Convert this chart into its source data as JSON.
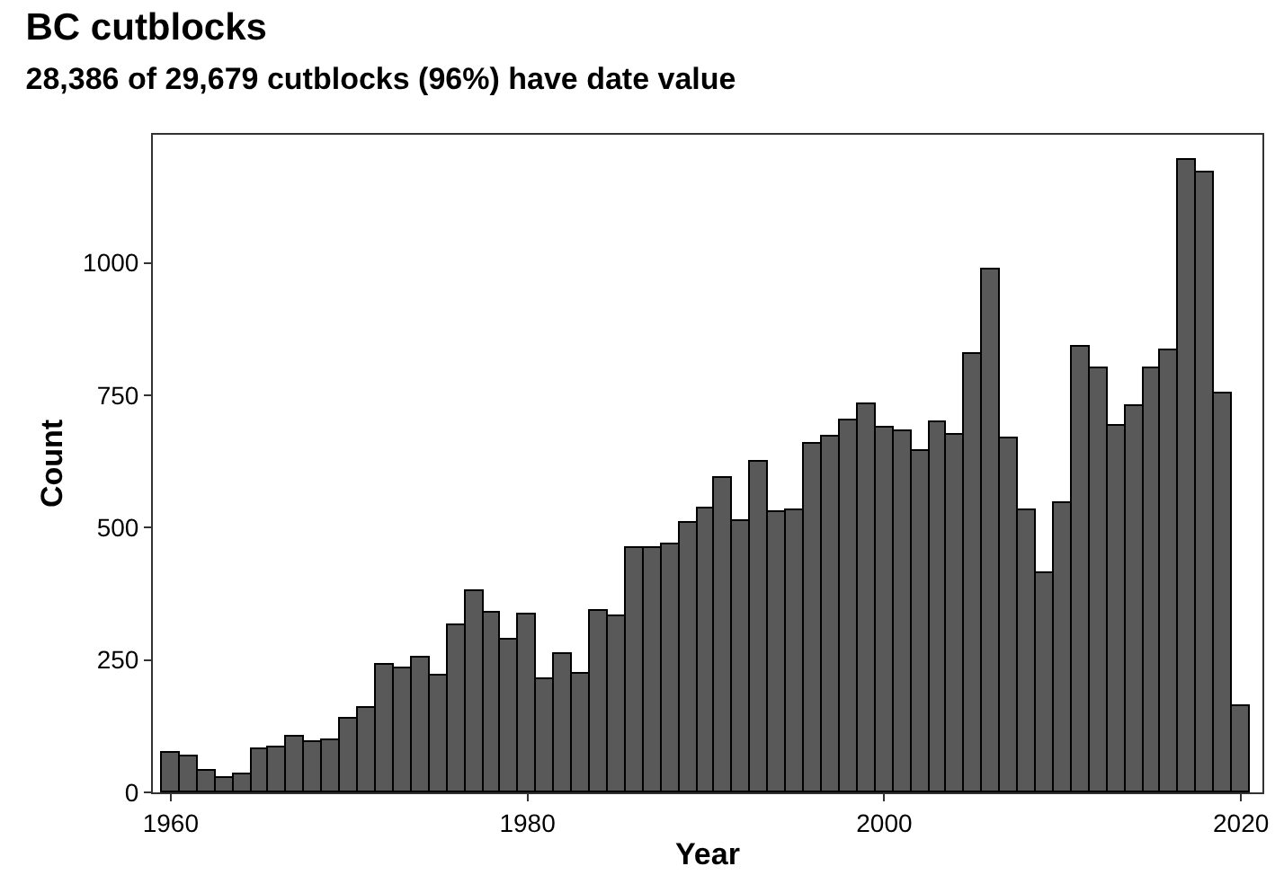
{
  "chart_data": {
    "type": "histogram",
    "title": "BC cutblocks",
    "subtitle": "28,386 of 29,679 cutblocks (96%) have date value",
    "xlabel": "Year",
    "ylabel": "Count",
    "bins": [
      1959.5,
      1960.5,
      1961.5,
      1962.5,
      1963.5,
      1964.5,
      1965.5,
      1966.5,
      1967.5,
      1968.5,
      1969.5,
      1970.5,
      1971.5,
      1972.5,
      1973.5,
      1974.5,
      1975.5,
      1976.5,
      1977.5,
      1978.5,
      1979.5,
      1980.5,
      1981.5,
      1982.5,
      1983.5,
      1984.5,
      1985.5,
      1986.5,
      1987.5,
      1988.5,
      1989.5,
      1990.5,
      1991.5,
      1992.5,
      1993.5,
      1994.5,
      1995.5,
      1996.5,
      1997.5,
      1998.5,
      1999.5,
      2000.5,
      2001.5,
      2002.5,
      2003.5,
      2004.5,
      2005.5,
      2006.5,
      2007.5,
      2008.5,
      2009.5,
      2010.5,
      2011.5,
      2012.5,
      2013.5,
      2014.5,
      2015.5,
      2016.5,
      2017.5,
      2018.5,
      2019.5,
      2020.5
    ],
    "values": [
      75,
      68,
      40,
      27,
      35,
      80,
      85,
      105,
      95,
      98,
      140,
      160,
      240,
      235,
      255,
      222,
      315,
      380,
      340,
      290,
      335,
      215,
      263,
      225,
      343,
      332,
      462,
      462,
      470,
      510,
      535,
      593,
      513,
      623,
      530,
      533,
      660,
      673,
      703,
      732,
      690,
      683,
      645,
      700,
      675,
      828,
      988,
      668,
      533,
      413,
      548,
      843,
      800,
      692,
      728,
      800,
      835,
      1195,
      1170,
      752,
      162
    ],
    "color": "#595959",
    "xlim": [
      1959.0,
      2021.2
    ],
    "xticks": [
      1960,
      1980,
      2000,
      2020
    ],
    "ylim": [
      0,
      1242
    ],
    "yticks": [
      0,
      250,
      500,
      750,
      1000
    ],
    "grid": false
  }
}
